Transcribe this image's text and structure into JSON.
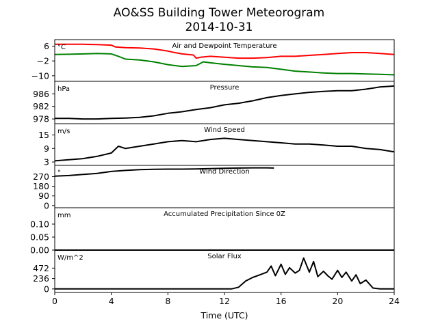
{
  "chart_data": {
    "type": "line",
    "title": "AO&SS Building Tower Meteorogram",
    "subtitle": "2014-10-31",
    "xlabel": "Time (UTC)",
    "x_ticks": [
      0,
      4,
      8,
      12,
      16,
      20,
      24
    ],
    "xlim": [
      0,
      24
    ],
    "grid": false,
    "panels": [
      {
        "title": "Air and Dewpoint Temperature",
        "unit": "°C",
        "yticks": [
          "6",
          "−2",
          "−10"
        ],
        "ytick_values": [
          6,
          -2,
          -10
        ],
        "ylim": [
          -13,
          9.5
        ],
        "series": [
          {
            "color": "#ff0000",
            "x": [
              0,
              1,
              2,
              3,
              4,
              4.3,
              5,
              6,
              7,
              8,
              8.5,
              9,
              9.8,
              10,
              10.3,
              11,
              12,
              13,
              14,
              15,
              16,
              17,
              18,
              19,
              20,
              21,
              22,
              23,
              24
            ],
            "y": [
              7,
              7,
              7,
              6.8,
              6.5,
              5.5,
              5.2,
              5,
              4.5,
              3.3,
              2.5,
              1.8,
              1.2,
              -0.5,
              0,
              0.5,
              0,
              -0.5,
              -0.5,
              -0.2,
              0.5,
              0.5,
              1,
              1.5,
              2,
              2.5,
              2.5,
              2,
              1.5
            ]
          },
          {
            "color": "#008000",
            "x": [
              0,
              1,
              2,
              3,
              4,
              4.5,
              5,
              6,
              7,
              8,
              9,
              10,
              10.5,
              11,
              12,
              13,
              14,
              15,
              16,
              17,
              18,
              19,
              20,
              21,
              22,
              23,
              24
            ],
            "y": [
              1.5,
              1.6,
              1.8,
              2,
              1.8,
              0.5,
              -1,
              -1.5,
              -2.5,
              -4,
              -5,
              -4.5,
              -2.5,
              -3,
              -3.8,
              -4.5,
              -5.2,
              -5.5,
              -6.5,
              -7.5,
              -8,
              -8.5,
              -8.8,
              -8.8,
              -9,
              -9.2,
              -9.5
            ]
          }
        ]
      },
      {
        "title": "Pressure",
        "unit": "hPa",
        "yticks": [
          "986",
          "982",
          "978"
        ],
        "ytick_values": [
          986,
          982,
          978
        ],
        "ylim": [
          976.5,
          990
        ],
        "series": [
          {
            "color": "#000000",
            "x": [
              0,
              1,
              2,
              3,
              4,
              5,
              6,
              7,
              8,
              9,
              10,
              11,
              12,
              13,
              14,
              15,
              16,
              17,
              18,
              19,
              20,
              21,
              22,
              23,
              24
            ],
            "y": [
              978.2,
              978.2,
              978,
              978,
              978.2,
              978.3,
              978.5,
              979,
              979.8,
              980.3,
              981,
              981.6,
              982.5,
              983,
              983.8,
              984.8,
              985.5,
              986,
              986.5,
              986.8,
              987,
              987,
              987.5,
              988.2,
              988.5
            ]
          }
        ]
      },
      {
        "title": "Wind Speed",
        "unit": "m/s",
        "yticks": [
          "15",
          "9",
          "3"
        ],
        "ytick_values": [
          15,
          9,
          3
        ],
        "ylim": [
          1.5,
          20
        ],
        "series": [
          {
            "color": "#000000",
            "x": [
              0,
              1,
              2,
              3,
              4,
              4.5,
              5,
              6,
              7,
              8,
              9,
              10,
              11,
              12,
              13,
              14,
              15,
              16,
              17,
              18,
              19,
              20,
              21,
              22,
              23,
              24
            ],
            "y": [
              3.5,
              4,
              4.5,
              5.5,
              7,
              10,
              9,
              10,
              11,
              12,
              12.5,
              12,
              13,
              13.5,
              13,
              12.5,
              12,
              11.5,
              11,
              11,
              10.5,
              10,
              10,
              9,
              8.5,
              7.5
            ]
          }
        ]
      },
      {
        "title": "Wind Direction",
        "unit": "°",
        "yticks": [
          "270",
          "180",
          "90",
          "0"
        ],
        "ytick_values": [
          270,
          180,
          90,
          0
        ],
        "ylim": [
          -20,
          375
        ],
        "series": [
          {
            "color": "#000000",
            "x": [
              0,
              1,
              2,
              3,
              4,
              5,
              6,
              7,
              8,
              9,
              10,
              11,
              12,
              13,
              14,
              15,
              15.5
            ],
            "y": [
              275,
              280,
              290,
              300,
              318,
              328,
              335,
              338,
              340,
              340,
              342,
              345,
              348,
              350,
              352,
              352,
              350
            ]
          }
        ]
      },
      {
        "title": "Accumulated Precipitation Since 0Z",
        "unit": "mm",
        "yticks": [
          "0.10",
          "0.05",
          "0.00"
        ],
        "ytick_values": [
          0.1,
          0.05,
          0
        ],
        "ylim": [
          0,
          0.163
        ],
        "series": [
          {
            "color": "#000000",
            "x": [
              0,
              24
            ],
            "y": [
              0,
              0
            ]
          }
        ]
      },
      {
        "title": "Solar Flux",
        "unit": "W/m^2",
        "yticks": [
          "472",
          "236",
          "0"
        ],
        "ytick_values": [
          472,
          236,
          0
        ],
        "ylim": [
          -80,
          880
        ],
        "series": [
          {
            "color": "#000000",
            "x": [
              0,
              12.5,
              13,
              13.5,
              14,
              14.5,
              15,
              15.3,
              15.6,
              16,
              16.3,
              16.6,
              17,
              17.3,
              17.6,
              18,
              18.3,
              18.6,
              19,
              19.3,
              19.6,
              20,
              20.3,
              20.6,
              21,
              21.3,
              21.6,
              22,
              22.5,
              23,
              24
            ],
            "y": [
              0,
              0,
              40,
              180,
              260,
              320,
              380,
              520,
              300,
              560,
              330,
              480,
              360,
              420,
              700,
              380,
              620,
              280,
              400,
              300,
              220,
              420,
              260,
              380,
              180,
              320,
              120,
              200,
              20,
              0,
              0
            ]
          }
        ]
      }
    ]
  }
}
